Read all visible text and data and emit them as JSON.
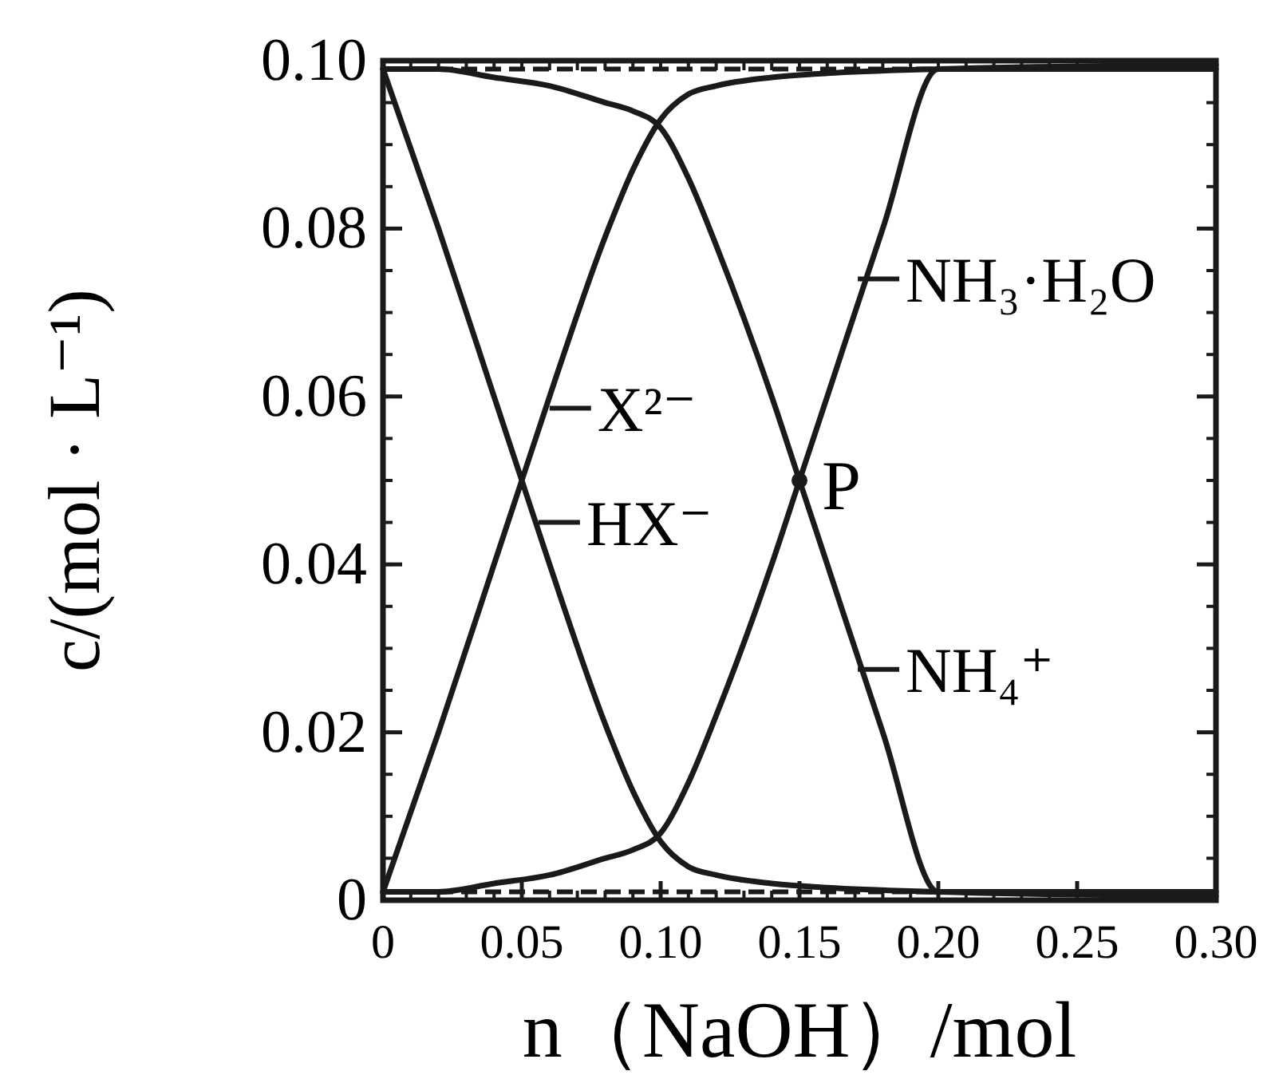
{
  "chart_data": {
    "type": "line",
    "xlabel": "n（NaOH）/mol",
    "ylabel": "c/(mol · L⁻¹)",
    "xlim": [
      0,
      0.3
    ],
    "ylim": [
      0,
      0.1
    ],
    "xticks": [
      0,
      0.05,
      {
        "value": 0.1,
        "label": "0.10"
      },
      0.15,
      {
        "value": 0.2,
        "label": "0.20"
      },
      0.25,
      {
        "value": 0.3,
        "label": "0.30"
      }
    ],
    "yticks": [
      0,
      0.02,
      0.04,
      0.06,
      0.08,
      {
        "value": 0.1,
        "label": "0.10"
      }
    ],
    "grid": false,
    "marker": "none",
    "line_style": "solid",
    "series": [
      {
        "color": "#1a1a1a",
        "x": [
          0,
          0.02,
          0.04,
          0.05,
          0.06,
          0.08,
          0.09,
          0.1,
          0.11,
          0.12,
          0.14,
          0.16,
          0.2,
          0.3
        ],
        "values": [
          0.099,
          0.08,
          0.06,
          0.05,
          0.04,
          0.021,
          0.013,
          0.007,
          0.004,
          0.003,
          0.002,
          0.0015,
          0.001,
          0.0005
        ]
      },
      {
        "color": "#1a1a1a",
        "x": [
          0,
          0.02,
          0.04,
          0.05,
          0.06,
          0.08,
          0.09,
          0.1,
          0.11,
          0.12,
          0.14,
          0.16,
          0.2,
          0.3
        ],
        "values": [
          0.001,
          0.02,
          0.04,
          0.05,
          0.06,
          0.079,
          0.087,
          0.093,
          0.096,
          0.097,
          0.098,
          0.0985,
          0.099,
          0.0995
        ]
      },
      {
        "color": "#1a1a1a",
        "x": [
          0,
          0.02,
          0.04,
          0.06,
          0.08,
          0.09,
          0.1,
          0.11,
          0.12,
          0.14,
          0.15,
          0.16,
          0.18,
          0.2,
          0.21,
          0.3
        ],
        "values": [
          0.099,
          0.099,
          0.098,
          0.097,
          0.095,
          0.094,
          0.092,
          0.086,
          0.078,
          0.06,
          0.05,
          0.04,
          0.02,
          0.001,
          0.001,
          0.001
        ]
      },
      {
        "color": "#1a1a1a",
        "x": [
          0,
          0.02,
          0.04,
          0.06,
          0.08,
          0.09,
          0.1,
          0.11,
          0.12,
          0.14,
          0.15,
          0.16,
          0.18,
          0.2,
          0.21,
          0.3
        ],
        "values": [
          0.001,
          0.001,
          0.002,
          0.003,
          0.005,
          0.006,
          0.008,
          0.014,
          0.022,
          0.04,
          0.05,
          0.06,
          0.08,
          0.099,
          0.099,
          0.099
        ]
      },
      {
        "type": "scatter",
        "marker": "circle",
        "color": "#1a1a1a",
        "x": [
          0.15
        ],
        "values": [
          0.05
        ]
      }
    ],
    "ref_lines": [
      {
        "axis": "y",
        "value": 0.099,
        "line_style": "dashed",
        "color": "#1a1a1a"
      },
      {
        "axis": "y",
        "value": 0.001,
        "line_style": "dashed",
        "color": "#1a1a1a"
      }
    ],
    "annotations": [
      {
        "text": "X²⁻",
        "x": 0.06,
        "y": 0.0586
      },
      {
        "text": "HX⁻",
        "x": 0.056,
        "y": 0.045
      },
      {
        "text": "NH₃·H₂O",
        "x": 0.171,
        "y": 0.074
      },
      {
        "text": "NH₄⁺",
        "x": 0.171,
        "y": 0.0275
      },
      {
        "text": "P",
        "x": 0.15,
        "y": 0.05
      }
    ]
  }
}
